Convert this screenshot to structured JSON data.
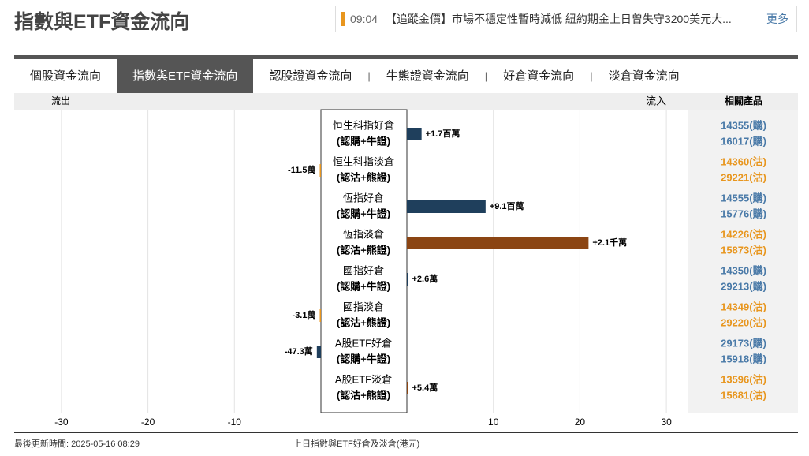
{
  "header": {
    "title": "指數與ETF資金流向",
    "news_time": "09:04",
    "news_text": "【追蹤金價】市場不穩定性暫時減低 紐約期金上日曾失守3200美元大...",
    "more": "更多"
  },
  "tabs": [
    "個股資金流向",
    "指數與ETF資金流向",
    "認股證資金流向",
    "牛熊證資金流向",
    "好倉資金流向",
    "淡倉資金流向"
  ],
  "active_tab": 1,
  "chart_data": {
    "type": "bar",
    "orientation": "horizontal",
    "outflow_label": "流出",
    "inflow_label": "流入",
    "products_header": "相關產品",
    "categories": [
      "恒生科指好倉",
      "恒生科指淡倉",
      "恆指好倉",
      "恆指淡倉",
      "國指好倉",
      "國指淡倉",
      "A股ETF好倉",
      "A股ETF淡倉"
    ],
    "subcategories": [
      "(認購+牛證)",
      "(認沽+熊證)",
      "(認購+牛證)",
      "(認沽+熊證)",
      "(認購+牛證)",
      "(認沽+熊證)",
      "(認購+牛證)",
      "(認沽+熊證)"
    ],
    "values": [
      1.7,
      -0.115,
      9.1,
      21,
      0.026,
      -0.031,
      -0.473,
      0.054
    ],
    "value_labels": [
      "+1.7百萬",
      "-11.5萬",
      "+9.1百萬",
      "+2.1千萬",
      "+2.6萬",
      "-3.1萬",
      "-47.3萬",
      "+5.4萬"
    ],
    "colors": [
      "#1f3f5c",
      "#e8961e",
      "#1f3f5c",
      "#8b4513",
      "#1f3f5c",
      "#e8961e",
      "#1f3f5c",
      "#8b4513"
    ],
    "products": [
      [
        "14355(購)",
        "16017(購)"
      ],
      [
        "14360(沽)",
        "29221(沽)"
      ],
      [
        "14555(購)",
        "15776(購)"
      ],
      [
        "14226(沽)",
        "15873(沽)"
      ],
      [
        "14350(購)",
        "29213(購)"
      ],
      [
        "14349(沽)",
        "29220(沽)"
      ],
      [
        "29173(購)",
        "15918(購)"
      ],
      [
        "13596(沽)",
        "15881(沽)"
      ]
    ],
    "product_colors": [
      "#4a7aa8",
      "#e8961e",
      "#4a7aa8",
      "#e8961e",
      "#4a7aa8",
      "#e8961e",
      "#4a7aa8",
      "#e8961e"
    ],
    "xlim": [
      -35.5,
      32.5
    ],
    "xticks": [
      -30,
      -20,
      -10,
      10,
      20,
      30
    ],
    "grid": true
  },
  "footer": {
    "updated": "最後更新時間: 2025-05-16 08:29",
    "note": "上日指數與ETF好倉及淡倉(港元)"
  }
}
